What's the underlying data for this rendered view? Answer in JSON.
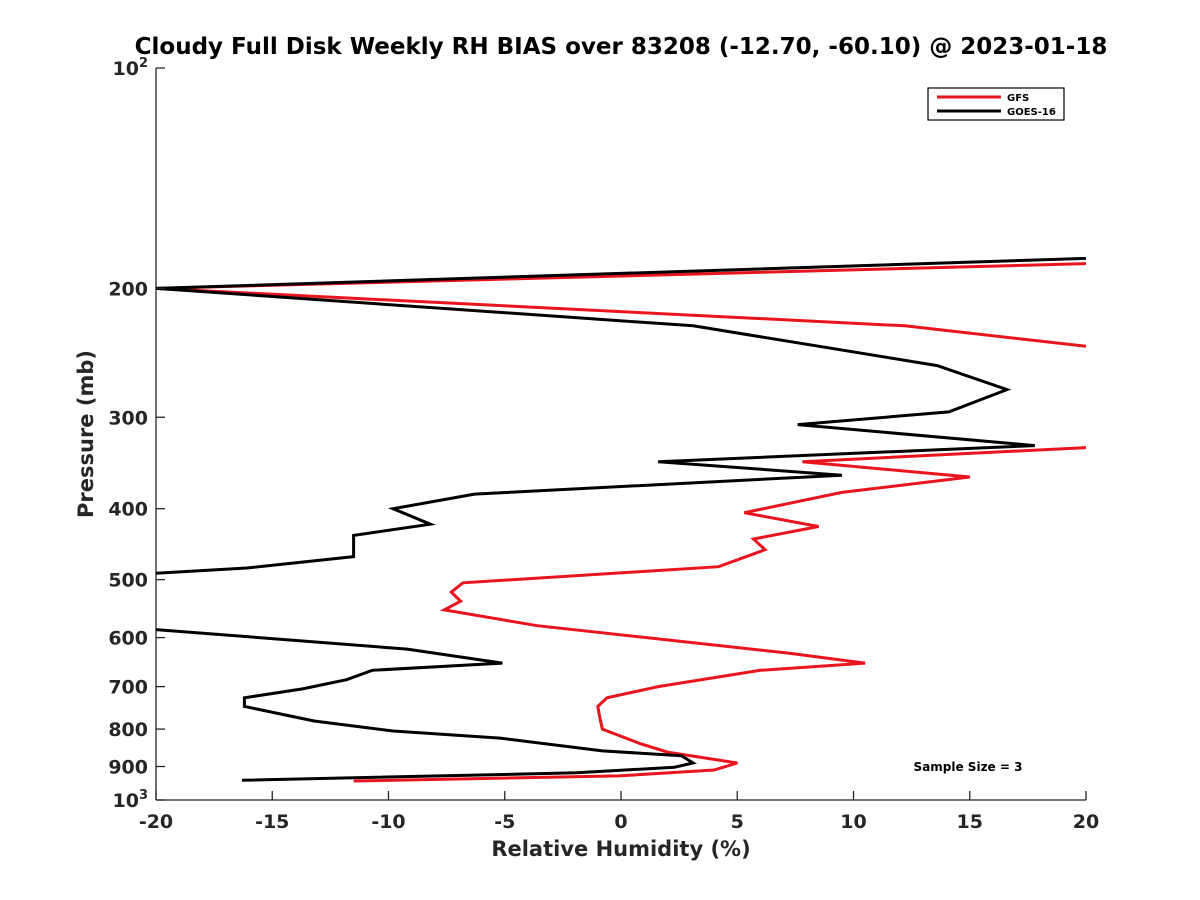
{
  "chart_data": {
    "type": "line",
    "title": "Cloudy Full Disk Weekly RH BIAS over 83208 (-12.70, -60.10) @ 2023-01-18",
    "xlabel": "Relative Humidity (%)",
    "ylabel": "Pressure (mb)",
    "xlim": [
      -20,
      20
    ],
    "ylim": [
      100,
      1000
    ],
    "yscale": "log",
    "y_reversed": true,
    "grid": false,
    "legend_location": "top-right",
    "x_ticks": [
      "-20",
      "-15",
      "-10",
      "-5",
      "0",
      "5",
      "10",
      "15",
      "20"
    ],
    "y_ticks": [
      {
        "value": 100,
        "base": "10",
        "exp": "2"
      },
      {
        "value": 200,
        "label": "200"
      },
      {
        "value": 300,
        "label": "300"
      },
      {
        "value": 400,
        "label": "400"
      },
      {
        "value": 500,
        "label": "500"
      },
      {
        "value": 600,
        "label": "600"
      },
      {
        "value": 700,
        "label": "700"
      },
      {
        "value": 800,
        "label": "800"
      },
      {
        "value": 900,
        "label": "900"
      },
      {
        "value": 1000,
        "base": "10",
        "exp": "3"
      }
    ],
    "series": [
      {
        "name": "GFS",
        "color": "#e8141e",
        "points": [
          [
            20,
            185
          ],
          [
            -20,
            200
          ],
          [
            12.2,
            225
          ],
          [
            20,
            240
          ],
          [
            null,
            250
          ],
          [
            20,
            330
          ],
          [
            7.8,
            345
          ],
          [
            15,
            362
          ],
          [
            9.5,
            380
          ],
          [
            5.3,
            405
          ],
          [
            8.5,
            423
          ],
          [
            5.7,
            440
          ],
          [
            6.2,
            455
          ],
          [
            4.2,
            480
          ],
          [
            -6.8,
            505
          ],
          [
            -7.3,
            520
          ],
          [
            -6.9,
            535
          ],
          [
            -7.6,
            550
          ],
          [
            -3.6,
            578
          ],
          [
            7.2,
            630
          ],
          [
            10.5,
            650
          ],
          [
            6,
            665
          ],
          [
            1.6,
            700
          ],
          [
            -0.6,
            725
          ],
          [
            -1,
            745
          ],
          [
            -0.9,
            775
          ],
          [
            -0.8,
            800
          ],
          [
            0.8,
            837
          ],
          [
            2.0,
            860
          ],
          [
            5.0,
            890
          ],
          [
            4.0,
            910
          ],
          [
            -0.1,
            927
          ],
          [
            -11.5,
            942
          ]
        ]
      },
      {
        "name": "GOES-16",
        "color": "#000000",
        "points": [
          [
            20,
            182
          ],
          [
            -20,
            200
          ],
          [
            3.1,
            225
          ],
          [
            13.6,
            255
          ],
          [
            16.6,
            275
          ],
          [
            14.1,
            295
          ],
          [
            7.6,
            307
          ],
          [
            17.8,
            328
          ],
          [
            1.6,
            345
          ],
          [
            9.5,
            360
          ],
          [
            -6.3,
            382
          ],
          [
            -9.8,
            400
          ],
          [
            -8.2,
            420
          ],
          [
            -11.5,
            435
          ],
          [
            -11.5,
            465
          ],
          [
            -16.1,
            482
          ],
          [
            -20,
            490
          ],
          [
            null,
            500
          ],
          [
            -20,
            585
          ],
          [
            -9.2,
            622
          ],
          [
            -5.1,
            650
          ],
          [
            -10.7,
            665
          ],
          [
            -11.8,
            685
          ],
          [
            -13.7,
            705
          ],
          [
            -16.2,
            725
          ],
          [
            -16.2,
            745
          ],
          [
            -13.2,
            780
          ],
          [
            -9.8,
            805
          ],
          [
            -5.2,
            823
          ],
          [
            -0.8,
            857
          ],
          [
            2.6,
            870
          ],
          [
            3.1,
            890
          ],
          [
            2.3,
            902
          ],
          [
            -1.9,
            918
          ],
          [
            -16.3,
            940
          ]
        ]
      }
    ],
    "annotations": [
      "Sample Size = 3"
    ]
  }
}
